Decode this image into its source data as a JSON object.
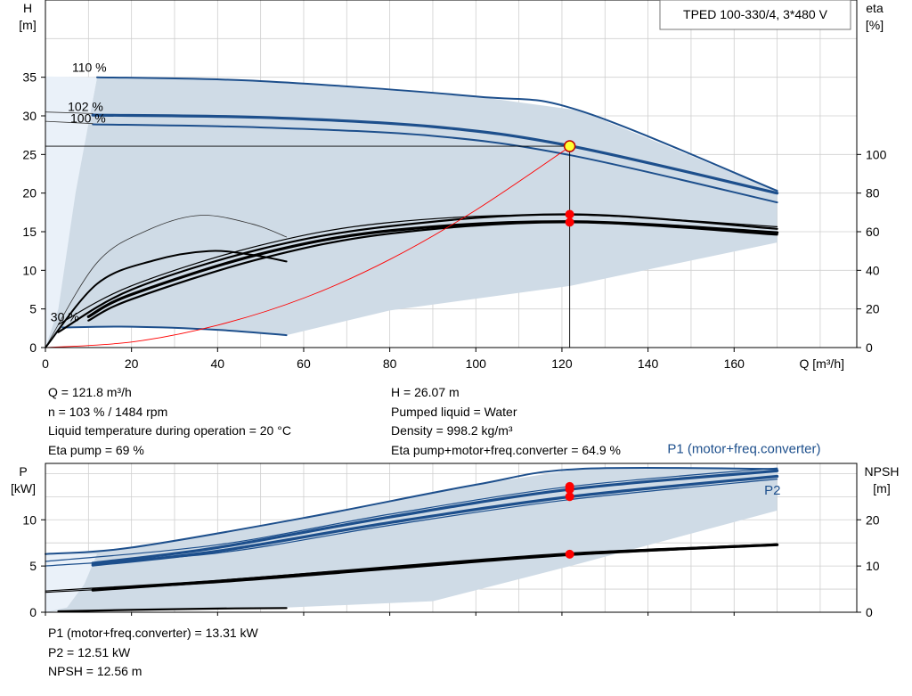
{
  "product_title": "TPED 100-330/4, 3*480 V",
  "colors": {
    "curve_blue": "#1d4f8c",
    "area_fill": "#cfdbe6",
    "lowflow_fill": "#eaf1f9",
    "efficiency_black": "#000000",
    "system_curve_red": "#ff0000",
    "op_marker_red": "#ff0000",
    "op_marker_yellow": "#ffff33",
    "grid": "#cfcfcf"
  },
  "chart_data": [
    {
      "type": "line",
      "name": "head_efficiency",
      "y_left_label": [
        "H",
        "[m]"
      ],
      "y_right_label": [
        "eta",
        "[%]"
      ],
      "x_label": "Q [m³/h]",
      "x_ticks": [
        0,
        20,
        40,
        60,
        80,
        100,
        120,
        140,
        160
      ],
      "y_left_ticks": [
        0,
        5,
        10,
        15,
        20,
        25,
        30,
        35
      ],
      "y_right_ticks": [
        0,
        20,
        40,
        60,
        80,
        100
      ],
      "xlim": [
        0,
        188.5
      ],
      "ylim_left": [
        0,
        45
      ],
      "ylim_right": [
        0,
        180
      ],
      "grid": true,
      "speed_labels": [
        {
          "text": "110 %",
          "q": 6.2,
          "h": 36.3
        },
        {
          "text": "102 %",
          "q": 5.2,
          "h": 31.2
        },
        {
          "text": "100 %",
          "q": 5.8,
          "h": 29.7
        },
        {
          "text": "30 %",
          "q": 1.2,
          "h": 4.0
        }
      ],
      "op_point": {
        "q": 121.8,
        "h": 26.07,
        "eta": [
          69,
          64.9
        ]
      },
      "series": [
        {
          "name": "110 %",
          "axis": "left",
          "style": "blue",
          "width": 2,
          "points": [
            [
              12,
              35
            ],
            [
              50,
              34.5
            ],
            [
              100,
              32.5
            ],
            [
              124,
              30.7
            ],
            [
              170,
              20.3
            ]
          ]
        },
        {
          "name": "102 %",
          "axis": "left",
          "style": "blue",
          "width": 3.2,
          "points": [
            [
              11,
              30.1
            ],
            [
              50,
              29.8
            ],
            [
              90,
              28.6
            ],
            [
              122,
              26.1
            ],
            [
              170,
              20.0
            ]
          ]
        },
        {
          "name": "100 %",
          "axis": "left",
          "style": "blue",
          "width": 2,
          "points": [
            [
              11,
              28.9
            ],
            [
              50,
              28.5
            ],
            [
              90,
              27.4
            ],
            [
              122,
              24.9
            ],
            [
              170,
              18.8
            ]
          ]
        },
        {
          "name": "30 %",
          "axis": "left",
          "style": "blue",
          "width": 2,
          "points": [
            [
              4,
              2.6
            ],
            [
              20,
              2.7
            ],
            [
              40,
              2.3
            ],
            [
              56,
              1.6
            ]
          ]
        },
        {
          "name": "",
          "axis": "left",
          "style": "thin",
          "width": 0.8,
          "points": [
            [
              0,
              30.5
            ],
            [
              11,
              30.3
            ]
          ]
        },
        {
          "name": "",
          "axis": "left",
          "style": "thin",
          "width": 0.8,
          "points": [
            [
              0,
              29.3
            ],
            [
              11,
              29.0
            ]
          ]
        },
        {
          "name": "",
          "axis": "right",
          "style": "thin",
          "width": 0.8,
          "points": [
            [
              0,
              0
            ],
            [
              12,
              44
            ],
            [
              24,
              61
            ],
            [
              36,
              68.5
            ],
            [
              48,
              64
            ],
            [
              56,
              57.3
            ]
          ]
        },
        {
          "name": "",
          "axis": "right",
          "style": "black",
          "width": 2,
          "points": [
            [
              0,
              0
            ],
            [
              12,
              33
            ],
            [
              25,
              45
            ],
            [
              38,
              50
            ],
            [
              48,
              48
            ],
            [
              56,
              44.6
            ]
          ]
        },
        {
          "name": "",
          "axis": "right",
          "style": "black",
          "width": 1.2,
          "points": [
            [
              3,
              12
            ],
            [
              20,
              32
            ],
            [
              50,
              53
            ],
            [
              80,
              64.8
            ],
            [
              122,
              68.7
            ],
            [
              170,
              62.6
            ]
          ]
        },
        {
          "name": "",
          "axis": "right",
          "style": "black",
          "width": 2.2,
          "points": [
            [
              3,
              8
            ],
            [
              20,
              30
            ],
            [
              50,
              51
            ],
            [
              80,
              62.8
            ],
            [
              122,
              69
            ],
            [
              170,
              61.5
            ]
          ]
        },
        {
          "name": "",
          "axis": "right",
          "style": "black",
          "width": 2.2,
          "points": [
            [
              10,
              14
            ],
            [
              20,
              25
            ],
            [
              50,
              46
            ],
            [
              80,
              59
            ],
            [
              122,
              64.9
            ],
            [
              170,
              58.5
            ]
          ]
        },
        {
          "name": "",
          "axis": "right",
          "style": "black",
          "width": 3.2,
          "points": [
            [
              10,
              16
            ],
            [
              20,
              27.5
            ],
            [
              50,
              48.5
            ],
            [
              80,
              60.5
            ],
            [
              122,
              65.2
            ],
            [
              170,
              59.5
            ]
          ]
        },
        {
          "name": "",
          "axis": "left",
          "style": "red",
          "width": 0.9,
          "points": [
            [
              0,
              0
            ],
            [
              20,
              0.72
            ],
            [
              40,
              2.9
            ],
            [
              60,
              6.4
            ],
            [
              80,
              11.4
            ],
            [
              100,
              17.8
            ],
            [
              122,
              26.07
            ]
          ]
        }
      ]
    },
    {
      "type": "line",
      "name": "power_npsh",
      "y_left_label": [
        "P",
        "[kW]"
      ],
      "y_right_label": [
        "NPSH",
        "[m]"
      ],
      "x_label": "",
      "y_left_ticks": [
        0,
        5,
        10
      ],
      "y_right_ticks": [
        0,
        10,
        20
      ],
      "xlim": [
        0,
        188.5
      ],
      "ylim_left": [
        0,
        16.1
      ],
      "ylim_right": [
        0,
        32.2
      ],
      "grid": true,
      "labels": [
        {
          "text": "P1 (motor+freq.converter)",
          "q": 144.5,
          "p": 17.7
        },
        {
          "text": "P2",
          "q": 167,
          "p": 13.2
        }
      ],
      "op_point": {
        "q": 121.8,
        "p1": 13.31,
        "p2": 12.51,
        "npsh": 12.56
      },
      "series": [
        {
          "name": "P1 (motor+freq.converter)",
          "axis": "left",
          "style": "blue",
          "width": 2,
          "points": [
            [
              0,
              6.3
            ],
            [
              20,
              7.0
            ],
            [
              60,
              10.2
            ],
            [
              100,
              13.8
            ],
            [
              124,
              15.5
            ],
            [
              170,
              15.5
            ]
          ]
        },
        {
          "name": "",
          "axis": "left",
          "style": "blue",
          "width": 3.2,
          "points": [
            [
              11,
              5.3
            ],
            [
              40,
              7.0
            ],
            [
              80,
              10.3
            ],
            [
              122,
              13.3
            ],
            [
              170,
              15.3
            ]
          ]
        },
        {
          "name": "P2",
          "axis": "left",
          "style": "blue",
          "width": 3.2,
          "points": [
            [
              11,
              5.1
            ],
            [
              40,
              6.6
            ],
            [
              80,
              9.7
            ],
            [
              122,
              12.5
            ],
            [
              170,
              14.7
            ]
          ]
        },
        {
          "name": "",
          "axis": "left",
          "style": "blue",
          "width": 1.2,
          "points": [
            [
              0,
              5.5
            ],
            [
              40,
              7.3
            ],
            [
              80,
              10.6
            ],
            [
              122,
              13.6
            ],
            [
              170,
              15.6
            ]
          ]
        },
        {
          "name": "",
          "axis": "left",
          "style": "blue",
          "width": 1.2,
          "points": [
            [
              0,
              5.0
            ],
            [
              40,
              6.4
            ],
            [
              80,
              9.4
            ],
            [
              122,
              12.2
            ],
            [
              170,
              14.4
            ]
          ]
        },
        {
          "name": "NPSH",
          "axis": "right",
          "style": "black",
          "width": 3.2,
          "points": [
            [
              11,
              4.8
            ],
            [
              40,
              6.7
            ],
            [
              80,
              9.6
            ],
            [
              122,
              12.56
            ],
            [
              170,
              14.6
            ]
          ]
        },
        {
          "name": "",
          "axis": "right",
          "style": "black",
          "width": 1.2,
          "points": [
            [
              0,
              4.6
            ],
            [
              40,
              6.9
            ],
            [
              80,
              9.9
            ],
            [
              122,
              12.8
            ],
            [
              170,
              14.8
            ]
          ]
        },
        {
          "name": "",
          "axis": "right",
          "style": "black",
          "width": 1.2,
          "points": [
            [
              0,
              4.3
            ],
            [
              40,
              6.4
            ],
            [
              80,
              9.3
            ],
            [
              122,
              12.3
            ],
            [
              170,
              14.5
            ]
          ]
        },
        {
          "name": "",
          "axis": "right",
          "style": "black",
          "width": 2.2,
          "points": [
            [
              3,
              0.2
            ],
            [
              20,
              0.5
            ],
            [
              40,
              0.8
            ],
            [
              56,
              0.9
            ]
          ]
        }
      ]
    }
  ],
  "readout_top_left": [
    "Q = 121.8 m³/h",
    "n = 103 % / 1484 rpm",
    "Liquid temperature during operation = 20 °C",
    "Eta pump = 69 %"
  ],
  "readout_top_right": [
    "H = 26.07 m",
    "Pumped liquid = Water",
    "Density = 998.2 kg/m³",
    "Eta pump+motor+freq.converter = 64.9 %"
  ],
  "readout_bottom": [
    "P1 (motor+freq.converter) = 13.31 kW",
    "P2 = 12.51 kW",
    "NPSH = 12.56 m"
  ]
}
